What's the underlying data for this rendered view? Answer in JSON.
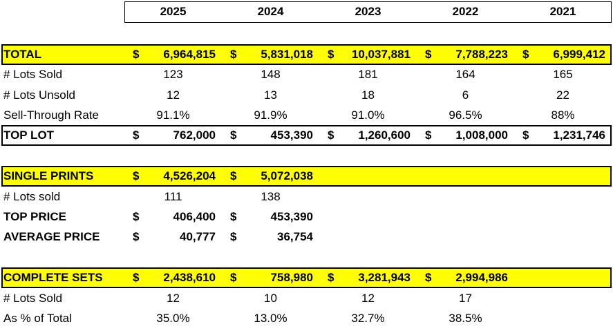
{
  "header": {
    "years": [
      "2025",
      "2024",
      "2023",
      "2022",
      "2021"
    ]
  },
  "sections": [
    {
      "rows": [
        {
          "label": "TOTAL",
          "highlight": true,
          "bold": true,
          "cells": [
            {
              "currency": "$",
              "amount": "6,964,815"
            },
            {
              "currency": "$",
              "amount": "5,831,018"
            },
            {
              "currency": "$",
              "amount": "10,037,881"
            },
            {
              "currency": "$",
              "amount": "7,788,223"
            },
            {
              "currency": "$",
              "amount": "6,999,412"
            }
          ]
        },
        {
          "label": "# Lots Sold",
          "cells": [
            "123",
            "148",
            "181",
            "164",
            "165"
          ]
        },
        {
          "label": "# Lots Unsold",
          "cells": [
            "12",
            "13",
            "18",
            "6",
            "22"
          ]
        },
        {
          "label": "Sell-Through Rate",
          "cells": [
            "91.1%",
            "91.9%",
            "91.0%",
            "96.5%",
            "88%"
          ]
        },
        {
          "label": "TOP LOT",
          "boxed": true,
          "bold": true,
          "cells": [
            {
              "currency": "$",
              "amount": "762,000"
            },
            {
              "currency": "$",
              "amount": "453,390"
            },
            {
              "currency": "$",
              "amount": "1,260,600"
            },
            {
              "currency": "$",
              "amount": "1,008,000"
            },
            {
              "currency": "$",
              "amount": "1,231,746"
            }
          ]
        }
      ]
    },
    {
      "rows": [
        {
          "label": "SINGLE PRINTS",
          "highlight": true,
          "bold": true,
          "cells": [
            {
              "currency": "$",
              "amount": "4,526,204"
            },
            {
              "currency": "$",
              "amount": "5,072,038"
            }
          ]
        },
        {
          "label": "# Lots sold",
          "cells": [
            "111",
            "138"
          ]
        },
        {
          "label": "TOP PRICE",
          "bold": true,
          "cells": [
            {
              "currency": "$",
              "amount": "406,400"
            },
            {
              "currency": "$",
              "amount": "453,390"
            }
          ]
        },
        {
          "label": "AVERAGE PRICE",
          "bold": true,
          "cells": [
            {
              "currency": "$",
              "amount": "40,777"
            },
            {
              "currency": "$",
              "amount": "36,754"
            }
          ]
        }
      ]
    },
    {
      "rows": [
        {
          "label": "COMPLETE SETS",
          "highlight": true,
          "bold": true,
          "cells": [
            {
              "currency": "$",
              "amount": "2,438,610"
            },
            {
              "currency": "$",
              "amount": "758,980"
            },
            {
              "currency": "$",
              "amount": "3,281,943"
            },
            {
              "currency": "$",
              "amount": "2,994,986"
            }
          ]
        },
        {
          "label": "# Lots Sold",
          "cells": [
            "12",
            "10",
            "12",
            "17"
          ]
        },
        {
          "label": "As % of Total",
          "cells": [
            "35.0%",
            "13.0%",
            "32.7%",
            "38.5%"
          ]
        }
      ]
    }
  ]
}
